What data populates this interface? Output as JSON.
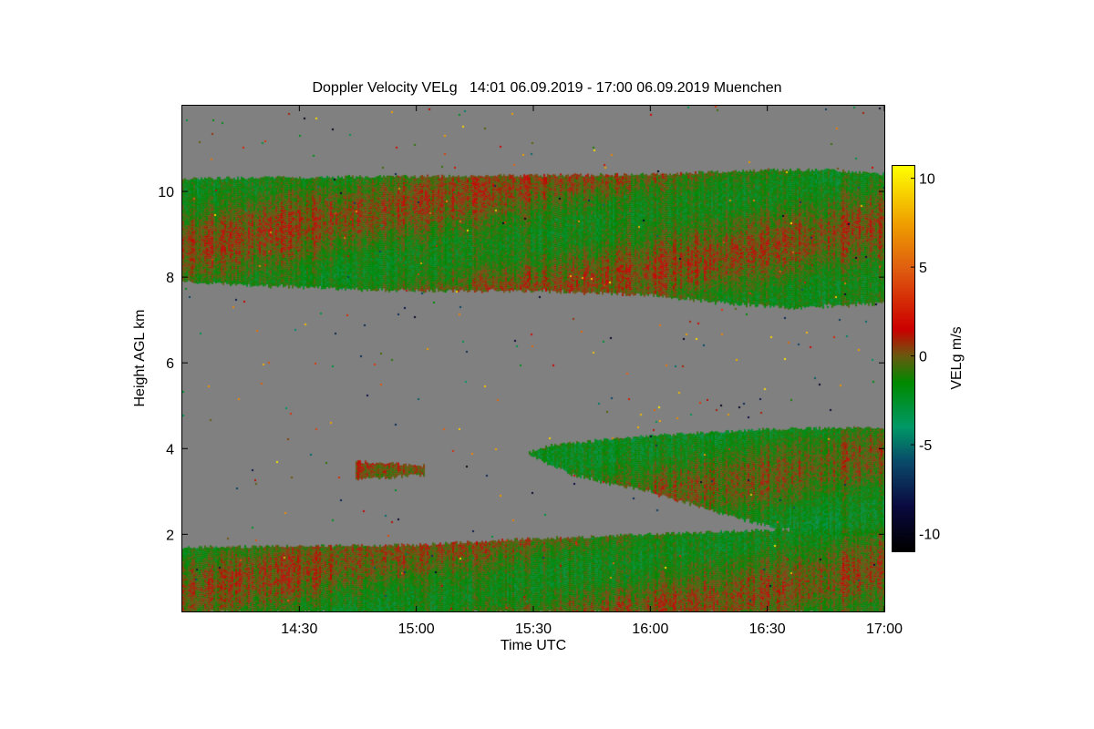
{
  "chart_data": {
    "type": "heatmap",
    "title": "Doppler Velocity VELg   14:01 06.09.2019 - 17:00 06.09.2019 Muenchen",
    "xlabel": "Time UTC",
    "ylabel": "Height AGL km",
    "colorbar_label": "VELg m/s",
    "xlim_minutes_after_1400": [
      0,
      180
    ],
    "ylim_km": [
      0.2,
      12.0
    ],
    "clim": [
      -11,
      10.7
    ],
    "x_ticks": [
      {
        "label": "14:30",
        "value": 30
      },
      {
        "label": "15:00",
        "value": 60
      },
      {
        "label": "15:30",
        "value": 90
      },
      {
        "label": "16:00",
        "value": 120
      },
      {
        "label": "16:30",
        "value": 150
      },
      {
        "label": "17:00",
        "value": 180
      }
    ],
    "y_ticks": [
      {
        "label": "2",
        "value": 2
      },
      {
        "label": "4",
        "value": 4
      },
      {
        "label": "6",
        "value": 6
      },
      {
        "label": "8",
        "value": 8
      },
      {
        "label": "10",
        "value": 10
      }
    ],
    "colorbar_ticks": [
      {
        "label": "10",
        "value": 10
      },
      {
        "label": "5",
        "value": 5
      },
      {
        "label": "0",
        "value": 0
      },
      {
        "label": "-5",
        "value": -5
      },
      {
        "label": "-10",
        "value": -10
      }
    ],
    "no_data_color": "#808080",
    "colormap": [
      {
        "v": -11,
        "c": "#000000"
      },
      {
        "v": -8.5,
        "c": "#0a0a40"
      },
      {
        "v": -6,
        "c": "#0a4a6a"
      },
      {
        "v": -4,
        "c": "#009966"
      },
      {
        "v": -1.5,
        "c": "#008a00"
      },
      {
        "v": 0,
        "c": "#6a5a10"
      },
      {
        "v": 1.5,
        "c": "#cc0000"
      },
      {
        "v": 5,
        "c": "#e06010"
      },
      {
        "v": 7.5,
        "c": "#f0a000"
      },
      {
        "v": 10.7,
        "c": "#ffff00"
      }
    ],
    "layers": [
      {
        "name": "upper cloud",
        "mean_velocity": -0.6,
        "top": [
          [
            0,
            10.3
          ],
          [
            60,
            10.35
          ],
          [
            120,
            10.4
          ],
          [
            150,
            10.5
          ],
          [
            165,
            10.5
          ],
          [
            180,
            10.4
          ]
        ],
        "bottom": [
          [
            0,
            7.9
          ],
          [
            40,
            7.75
          ],
          [
            60,
            7.7
          ],
          [
            90,
            7.7
          ],
          [
            120,
            7.6
          ],
          [
            140,
            7.4
          ],
          [
            155,
            7.3
          ],
          [
            180,
            7.4
          ]
        ]
      },
      {
        "name": "mid cloud",
        "start": 88,
        "mean_velocity": -1.0,
        "top": [
          [
            88,
            3.9
          ],
          [
            95,
            4.1
          ],
          [
            120,
            4.3
          ],
          [
            150,
            4.45
          ],
          [
            180,
            4.5
          ]
        ],
        "bottom": [
          [
            88,
            3.9
          ],
          [
            100,
            3.4
          ],
          [
            120,
            3.0
          ],
          [
            135,
            2.6
          ],
          [
            150,
            2.2
          ],
          [
            165,
            2.0
          ],
          [
            180,
            2.0
          ]
        ]
      },
      {
        "name": "mid patch",
        "start": 44,
        "end": 62,
        "mean_velocity": 0.5,
        "top": [
          [
            44,
            3.7
          ],
          [
            62,
            3.6
          ]
        ],
        "bottom": [
          [
            44,
            3.3
          ],
          [
            62,
            3.4
          ]
        ]
      },
      {
        "name": "boundary layer",
        "mean_velocity": -0.7,
        "top": [
          [
            0,
            1.7
          ],
          [
            60,
            1.75
          ],
          [
            90,
            1.9
          ],
          [
            120,
            2.0
          ],
          [
            150,
            2.1
          ],
          [
            180,
            2.1
          ]
        ],
        "bottom": [
          [
            0,
            0.2
          ],
          [
            180,
            0.2
          ]
        ]
      }
    ]
  }
}
